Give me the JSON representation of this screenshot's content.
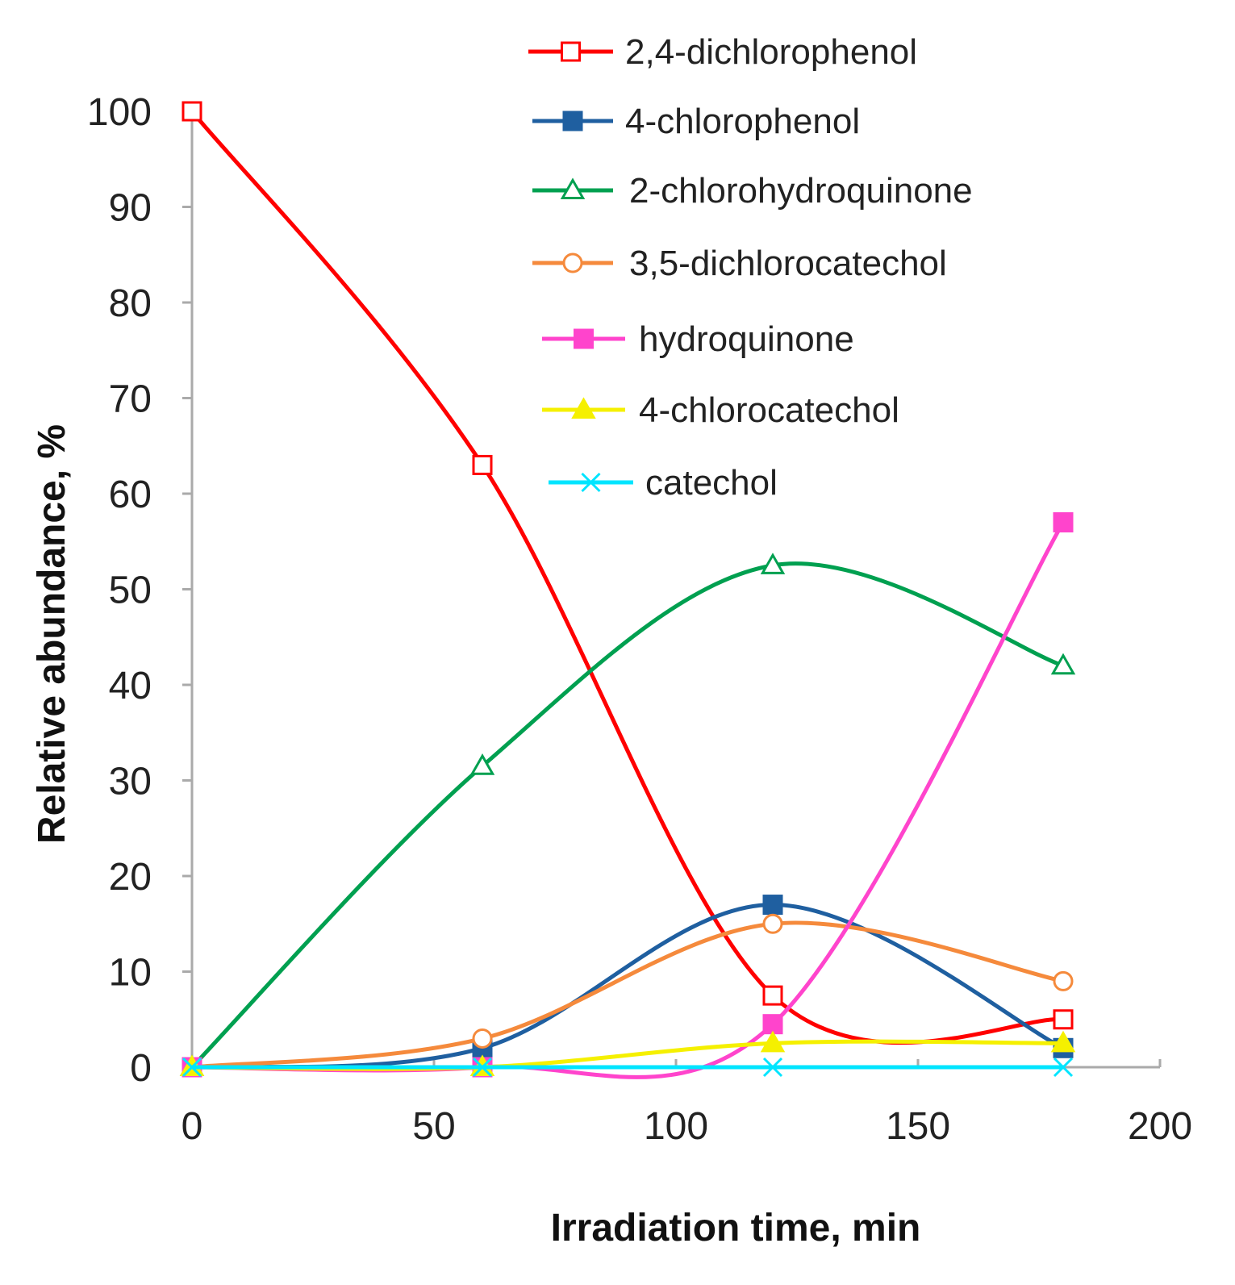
{
  "chart_data": {
    "type": "line",
    "title": "",
    "xlabel": "Irradiation time, min",
    "ylabel": "Relative abundance, %",
    "xlim": [
      0,
      200
    ],
    "ylim": [
      0,
      100
    ],
    "xticks": [
      "0",
      "50",
      "100",
      "150",
      "200"
    ],
    "yticks": [
      "0",
      "10",
      "20",
      "30",
      "40",
      "50",
      "60",
      "70",
      "80",
      "90",
      "100"
    ],
    "grid": false,
    "smooth": true,
    "legend_position": "top-right",
    "x": [
      0,
      60,
      120,
      180
    ],
    "series": [
      {
        "name": "2,4-dichlorophenol",
        "color": "#ff0000",
        "marker": "square-open",
        "values": [
          100,
          63,
          7.5,
          5
        ]
      },
      {
        "name": "4-chlorophenol",
        "color": "#1f5fa0",
        "marker": "square-filled",
        "values": [
          0,
          2,
          17,
          2
        ]
      },
      {
        "name": "2-chlorohydroquinone",
        "color": "#00a050",
        "marker": "triangle-open",
        "values": [
          0,
          31.5,
          52.5,
          42
        ]
      },
      {
        "name": "3,5-dichlorocatechol",
        "color": "#f58a3c",
        "marker": "circle-open",
        "values": [
          0,
          3,
          15,
          9
        ]
      },
      {
        "name": "hydroquinone",
        "color": "#ff44cc",
        "marker": "square-filled",
        "values": [
          0,
          0,
          4.5,
          57
        ]
      },
      {
        "name": "4-chlorocatechol",
        "color": "#f5f000",
        "marker": "triangle-filled",
        "values": [
          0,
          0,
          2.5,
          2.5
        ]
      },
      {
        "name": "catechol",
        "color": "#00e5ff",
        "marker": "x",
        "values": [
          0,
          0,
          0,
          0
        ]
      }
    ]
  }
}
